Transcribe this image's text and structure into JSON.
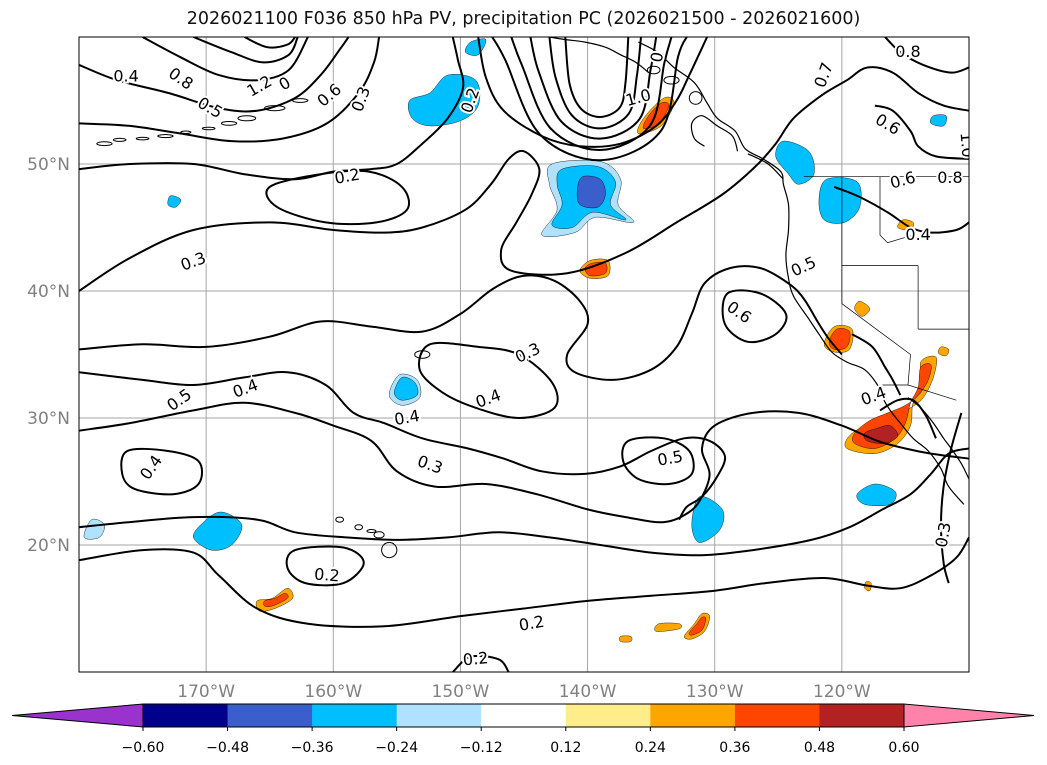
{
  "title": "2026021100 F036 850 hPa PV, precipitation PC (2026021500 - 2026021600)",
  "map": {
    "lon_min": -180,
    "lon_max": -110,
    "lat_min": 10,
    "lat_max": 60,
    "lat_ticks": [
      {
        "lat": 50,
        "label": "50°N"
      },
      {
        "lat": 40,
        "label": "40°N"
      },
      {
        "lat": 30,
        "label": "30°N"
      },
      {
        "lat": 20,
        "label": "20°N"
      }
    ],
    "lon_ticks": [
      {
        "lon": -170,
        "label": "170°W"
      },
      {
        "lon": -160,
        "label": "160°W"
      },
      {
        "lon": -150,
        "label": "150°W"
      },
      {
        "lon": -140,
        "label": "140°W"
      },
      {
        "lon": -130,
        "label": "130°W"
      },
      {
        "lon": -120,
        "label": "120°W"
      }
    ],
    "grid": true
  },
  "contour_labels": [
    {
      "lon": -176.3,
      "lat": 56.9,
      "text": "0.4",
      "rot": 0
    },
    {
      "lon": -172.0,
      "lat": 56.7,
      "text": "0.8",
      "rot": 35
    },
    {
      "lon": -169.7,
      "lat": 54.4,
      "text": "0.5",
      "rot": 30
    },
    {
      "lon": -165.8,
      "lat": 56.1,
      "text": "1.2",
      "rot": -30
    },
    {
      "lon": -163.8,
      "lat": 56.3,
      "text": "0",
      "rot": -30
    },
    {
      "lon": -160.3,
      "lat": 55.4,
      "text": "0.6",
      "rot": -40
    },
    {
      "lon": -157.8,
      "lat": 55.1,
      "text": "0.3",
      "rot": -70
    },
    {
      "lon": -158.9,
      "lat": 49.0,
      "text": "0.2",
      "rot": -10
    },
    {
      "lon": -171.0,
      "lat": 42.3,
      "text": "0.3",
      "rot": -20
    },
    {
      "lon": -172.1,
      "lat": 31.4,
      "text": "0.5",
      "rot": -35
    },
    {
      "lon": -166.9,
      "lat": 32.3,
      "text": "0.4",
      "rot": -20
    },
    {
      "lon": -174.3,
      "lat": 26.1,
      "text": "0.4",
      "rot": -55
    },
    {
      "lon": -154.2,
      "lat": 30.0,
      "text": "0.4",
      "rot": -10
    },
    {
      "lon": -152.4,
      "lat": 26.3,
      "text": "0.3",
      "rot": 20
    },
    {
      "lon": -147.8,
      "lat": 31.5,
      "text": "0.4",
      "rot": -20
    },
    {
      "lon": -144.7,
      "lat": 35.1,
      "text": "0.3",
      "rot": -25
    },
    {
      "lon": -160.5,
      "lat": 17.6,
      "text": "0.2",
      "rot": 5
    },
    {
      "lon": -144.4,
      "lat": 13.8,
      "text": "0.2",
      "rot": -10
    },
    {
      "lon": -148.8,
      "lat": 11.0,
      "text": "0.2",
      "rot": -5
    },
    {
      "lon": -149.2,
      "lat": 55.0,
      "text": "0.2",
      "rot": -70
    },
    {
      "lon": -136.0,
      "lat": 55.2,
      "text": "1.0",
      "rot": -15
    },
    {
      "lon": -134.5,
      "lat": 58.4,
      "text": "0",
      "rot": -80
    },
    {
      "lon": -133.5,
      "lat": 26.8,
      "text": "0.5",
      "rot": -10
    },
    {
      "lon": -128.1,
      "lat": 38.3,
      "text": "0.6",
      "rot": 35
    },
    {
      "lon": -123.0,
      "lat": 41.9,
      "text": "0.5",
      "rot": -25
    },
    {
      "lon": -117.5,
      "lat": 31.7,
      "text": "0.4",
      "rot": -20
    },
    {
      "lon": -121.4,
      "lat": 57.0,
      "text": "0.7",
      "rot": -70
    },
    {
      "lon": -114.8,
      "lat": 58.8,
      "text": "0.8",
      "rot": 0
    },
    {
      "lon": -116.4,
      "lat": 53.1,
      "text": "0.6",
      "rot": 30
    },
    {
      "lon": -110.2,
      "lat": 51.5,
      "text": "1.0",
      "rot": 85
    },
    {
      "lon": -115.2,
      "lat": 48.7,
      "text": "0.6",
      "rot": -15
    },
    {
      "lon": -111.5,
      "lat": 48.9,
      "text": "0.8",
      "rot": 0
    },
    {
      "lon": -114.0,
      "lat": 44.4,
      "text": "0.4",
      "rot": 0
    },
    {
      "lon": -112.0,
      "lat": 20.8,
      "text": "0.3",
      "rot": -80
    }
  ],
  "precip_levels": [
    -0.6,
    -0.48,
    -0.36,
    -0.24,
    -0.12,
    0.12,
    0.24,
    0.36,
    0.48,
    0.6
  ],
  "colorbar": {
    "colors": [
      "#9a32cd",
      "#00008b",
      "#3a5fcd",
      "#00bfff",
      "#b0e2ff",
      "#ffffff",
      "#ffec8b",
      "#ffa500",
      "#ff4500",
      "#b22222",
      "#ff82ab"
    ],
    "tick_labels": [
      "−0.60",
      "−0.48",
      "−0.36",
      "−0.24",
      "−0.12",
      "0.12",
      "0.24",
      "0.36",
      "0.48",
      "0.60"
    ],
    "extend": "both"
  }
}
